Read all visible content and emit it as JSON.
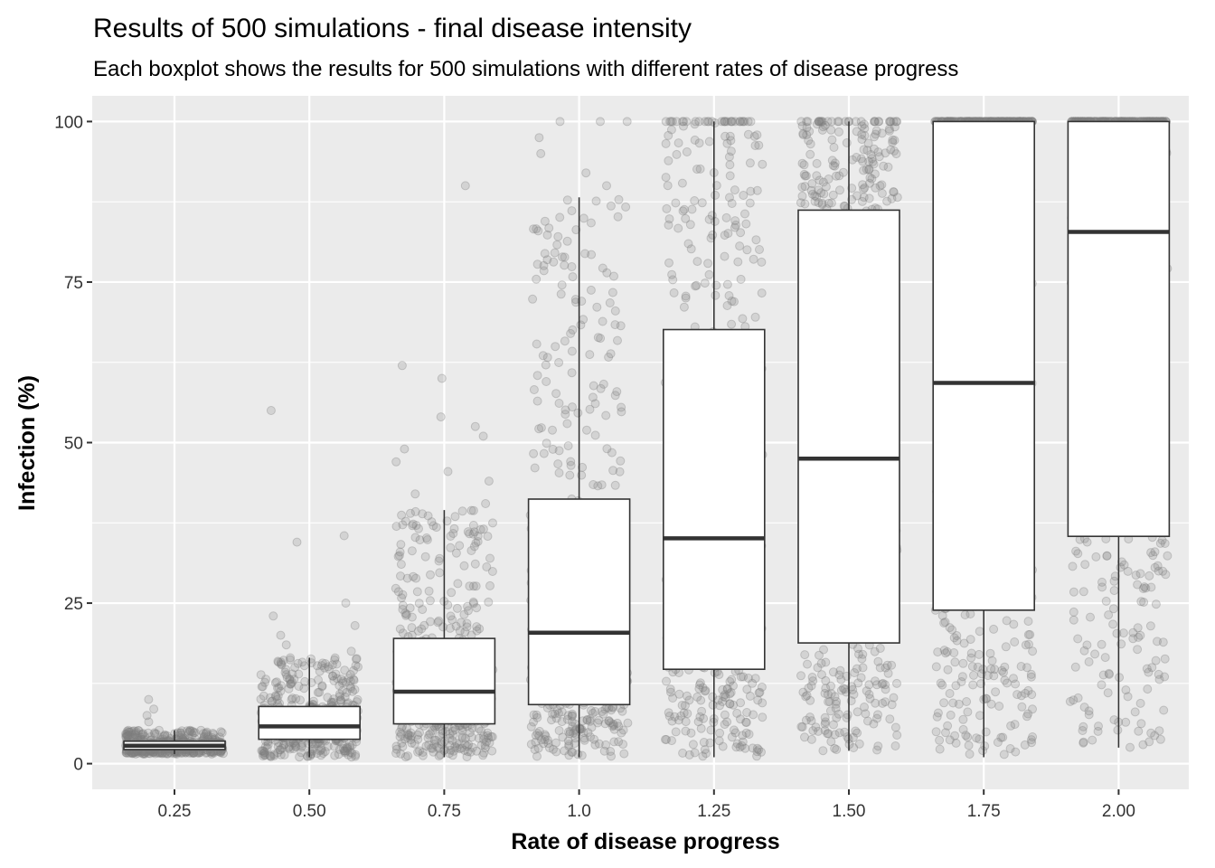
{
  "chart_data": {
    "type": "boxplot",
    "title": "Results of 500 simulations -  final disease intensity",
    "subtitle": "Each boxplot shows the results for 500 simulations with different rates of disease progress",
    "xlabel": "Rate of disease progress",
    "ylabel": "Infection (%)",
    "ylim": [
      -4,
      104
    ],
    "yticks": [
      0,
      25,
      50,
      75,
      100
    ],
    "categories": [
      "0.25",
      "0.50",
      "0.75",
      "1.0",
      "1.25",
      "1.50",
      "1.75",
      "2.00"
    ],
    "grid": true,
    "legend": "none",
    "points_per_group": 500,
    "boxes": [
      {
        "category": "0.25",
        "min": 1.5,
        "q1": 2.2,
        "median": 2.8,
        "q3": 3.5,
        "max": 5.2,
        "outliers": [
          6.5,
          7.5,
          8.5,
          10.0
        ]
      },
      {
        "category": "0.50",
        "min": 1.0,
        "q1": 3.8,
        "median": 5.8,
        "q3": 8.9,
        "max": 16.5,
        "outliers": [
          17.5,
          18.5,
          20.0,
          21.5,
          23.0,
          25.0,
          34.5,
          35.5,
          55.0
        ]
      },
      {
        "category": "0.75",
        "min": 1.0,
        "q1": 6.2,
        "median": 11.2,
        "q3": 19.5,
        "max": 39.5,
        "outliers": [
          40.5,
          42.0,
          44.0,
          45.5,
          47.0,
          49.0,
          51.0,
          52.5,
          54.0,
          60.0,
          62.0,
          90.0
        ]
      },
      {
        "category": "1.0",
        "min": 1.0,
        "q1": 9.2,
        "median": 20.4,
        "q3": 41.2,
        "max": 88.2,
        "outliers": [
          90.0,
          92.0,
          95.0,
          97.5,
          100.0,
          100.0,
          100.0
        ]
      },
      {
        "category": "1.25",
        "min": 1.0,
        "q1": 14.7,
        "median": 35.1,
        "q3": 67.6,
        "max": 100.0,
        "outliers": []
      },
      {
        "category": "1.50",
        "min": 2.0,
        "q1": 18.8,
        "median": 47.5,
        "q3": 86.2,
        "max": 100.0,
        "outliers": []
      },
      {
        "category": "1.75",
        "min": 1.0,
        "q1": 23.9,
        "median": 59.3,
        "q3": 100.0,
        "max": 100.0,
        "outliers": []
      },
      {
        "category": "2.00",
        "min": 2.5,
        "q1": 35.4,
        "median": 82.8,
        "q3": 100.0,
        "max": 100.0,
        "outliers": []
      }
    ],
    "colors": {
      "panel_bg": "#EBEBEB",
      "gridline": "#FFFFFF",
      "box_fill": "#FFFFFF",
      "box_stroke": "#333333",
      "point": "#7F7F7F",
      "tick": "#333333"
    }
  }
}
